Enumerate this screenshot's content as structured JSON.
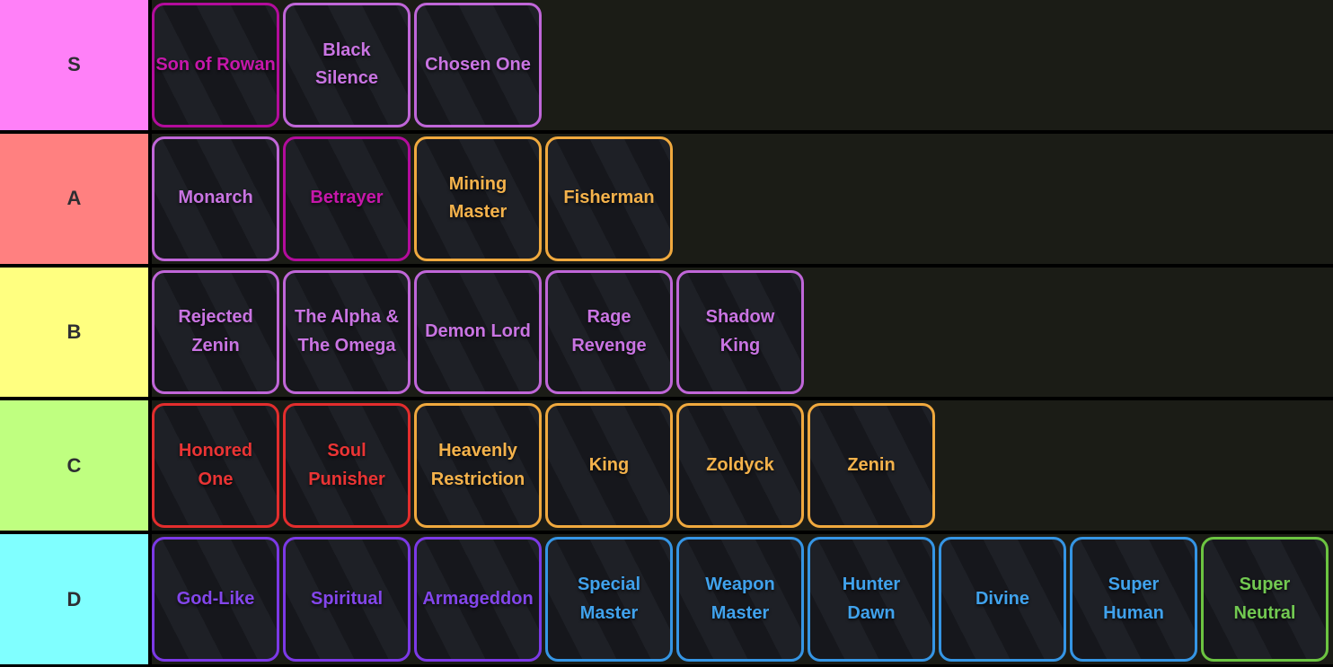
{
  "app": {
    "name": "tier-list-maker",
    "description": "Dark tier list board with S/A/B/C/D rows of game-class cards"
  },
  "theme": {
    "page_bg": "#000000",
    "row_bg": "#1b1c16",
    "card_bg_dark": "#16171c",
    "card_bg_light": "#1e2026",
    "label_text": "#2e2e32"
  },
  "tier_list": {
    "rows": [
      {
        "label": "S",
        "label_color": "#ff80f8",
        "items": [
          {
            "name": "Son of Rowan",
            "lines": [
              "Son of Rowan"
            ],
            "text_color": "#c617aa",
            "border_color": "#b30c9c"
          },
          {
            "name": "Black Silence",
            "lines": [
              "Black",
              "Silence"
            ],
            "text_color": "#c974e2",
            "border_color": "#c066d8"
          },
          {
            "name": "Chosen One",
            "lines": [
              "Chosen One"
            ],
            "text_color": "#c974e2",
            "border_color": "#c066d8"
          }
        ]
      },
      {
        "label": "A",
        "label_color": "#ff8080",
        "items": [
          {
            "name": "Monarch",
            "lines": [
              "Monarch"
            ],
            "text_color": "#c974e2",
            "border_color": "#c066d8"
          },
          {
            "name": "Betrayer",
            "lines": [
              "Betrayer"
            ],
            "text_color": "#c617aa",
            "border_color": "#b30c9c"
          },
          {
            "name": "Mining Master",
            "lines": [
              "Mining",
              "Master"
            ],
            "text_color": "#f4b24b",
            "border_color": "#f0a93e"
          },
          {
            "name": "Fisherman",
            "lines": [
              "Fisherman"
            ],
            "text_color": "#f4b24b",
            "border_color": "#f0a93e"
          }
        ]
      },
      {
        "label": "B",
        "label_color": "#ffff80",
        "items": [
          {
            "name": "Rejected Zenin",
            "lines": [
              "Rejected",
              "Zenin"
            ],
            "text_color": "#c974e2",
            "border_color": "#c066d8"
          },
          {
            "name": "The Alpha & The Omega",
            "lines": [
              "The Alpha &",
              "The Omega"
            ],
            "text_color": "#c974e2",
            "border_color": "#c066d8"
          },
          {
            "name": "Demon Lord",
            "lines": [
              "Demon Lord"
            ],
            "text_color": "#c974e2",
            "border_color": "#c066d8"
          },
          {
            "name": "Rage Revenge",
            "lines": [
              "Rage",
              "Revenge"
            ],
            "text_color": "#c974e2",
            "border_color": "#c066d8"
          },
          {
            "name": "Shadow King",
            "lines": [
              "Shadow",
              "King"
            ],
            "text_color": "#c974e2",
            "border_color": "#c066d8"
          }
        ]
      },
      {
        "label": "C",
        "label_color": "#bfff80",
        "items": [
          {
            "name": "Honored One",
            "lines": [
              "Honored",
              "One"
            ],
            "text_color": "#ea3434",
            "border_color": "#e32d2d"
          },
          {
            "name": "Soul Punisher",
            "lines": [
              "Soul",
              "Punisher"
            ],
            "text_color": "#ea3434",
            "border_color": "#e32d2d"
          },
          {
            "name": "Heavenly Restriction",
            "lines": [
              "Heavenly",
              "Restriction"
            ],
            "text_color": "#f4b24b",
            "border_color": "#f0a93e"
          },
          {
            "name": "King",
            "lines": [
              "King"
            ],
            "text_color": "#f4b24b",
            "border_color": "#f0a93e"
          },
          {
            "name": "Zoldyck",
            "lines": [
              "Zoldyck"
            ],
            "text_color": "#f4b24b",
            "border_color": "#f0a93e"
          },
          {
            "name": "Zenin",
            "lines": [
              "Zenin"
            ],
            "text_color": "#f4b24b",
            "border_color": "#f0a93e"
          }
        ]
      },
      {
        "label": "D",
        "label_color": "#80ffff",
        "items": [
          {
            "name": "God-Like",
            "lines": [
              "God-Like"
            ],
            "text_color": "#8346eb",
            "border_color": "#7c39e6"
          },
          {
            "name": "Spiritual",
            "lines": [
              "Spiritual"
            ],
            "text_color": "#8346eb",
            "border_color": "#7c39e6"
          },
          {
            "name": "Armageddon",
            "lines": [
              "Armageddon"
            ],
            "text_color": "#8346eb",
            "border_color": "#7c39e6"
          },
          {
            "name": "Special Master",
            "lines": [
              "Special",
              "Master"
            ],
            "text_color": "#40a2ec",
            "border_color": "#3595e4"
          },
          {
            "name": "Weapon Master",
            "lines": [
              "Weapon",
              "Master"
            ],
            "text_color": "#40a2ec",
            "border_color": "#3595e4"
          },
          {
            "name": "Hunter Dawn",
            "lines": [
              "Hunter",
              "Dawn"
            ],
            "text_color": "#40a2ec",
            "border_color": "#3595e4"
          },
          {
            "name": "Divine",
            "lines": [
              "Divine"
            ],
            "text_color": "#40a2ec",
            "border_color": "#3595e4"
          },
          {
            "name": "Super Human",
            "lines": [
              "Super",
              "Human"
            ],
            "text_color": "#40a2ec",
            "border_color": "#3595e4"
          },
          {
            "name": "Super Neutral",
            "lines": [
              "Super",
              "Neutral"
            ],
            "text_color": "#72c951",
            "border_color": "#6cc441"
          }
        ]
      }
    ]
  }
}
